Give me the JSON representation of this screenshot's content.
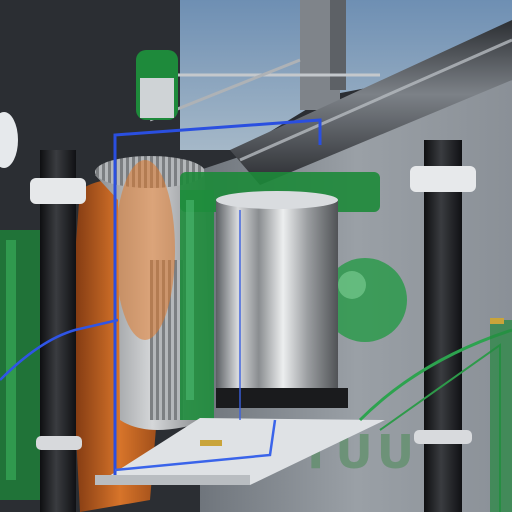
{
  "scene": {
    "kind": "3d-rendered-machine-closeup",
    "wall_text": "TUU",
    "palette": {
      "sky": "#6f8fb0",
      "wall": "#8d9298",
      "green_frame": "#1f8a3c",
      "blue_wire": "#2a4fd8",
      "orange_gear": "#c8611c",
      "steel": "#c9ccd0",
      "rod": "#1c1d20"
    }
  }
}
